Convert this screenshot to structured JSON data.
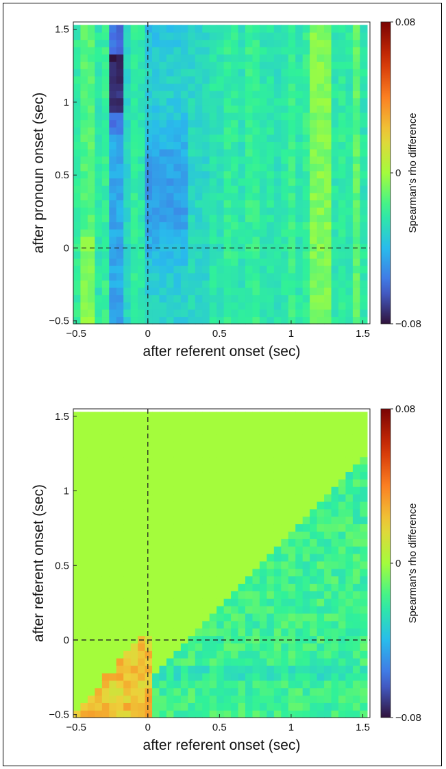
{
  "chart_data": [
    {
      "type": "heatmap",
      "xlabel": "after referent onset (sec)",
      "ylabel": "after pronoun onset (sec)",
      "xlim": [
        -0.52,
        1.55
      ],
      "ylim": [
        -0.52,
        1.55
      ],
      "x_ticks": [
        "-0.5",
        "0",
        "0.5",
        "1",
        "1.5"
      ],
      "x_tick_values": [
        -0.5,
        0,
        0.5,
        1,
        1.5
      ],
      "y_ticks": [
        "-0.5",
        "0",
        "0.5",
        "1",
        "1.5"
      ],
      "y_tick_values": [
        -0.5,
        0,
        0.5,
        1,
        1.5
      ],
      "colorbar": {
        "label": "Spearman's rho difference",
        "min": -0.08,
        "max": 0.08,
        "tick_labels": [
          "-0.08",
          "0",
          "0.08"
        ],
        "tick_values": [
          -0.08,
          0,
          0.08
        ]
      },
      "colormap": "turbo",
      "reference_lines": {
        "x": 0,
        "y": 0,
        "style": "dashed"
      },
      "grid_step_sec": 0.05,
      "pattern": "vertical stripes: strong negative band at x -0.25 to -0.2 (darkest at y 1.0-1.3), negative band x 0.0 to 0.3, mildly positive columns near x -0.45 and x 1.15-1.25"
    },
    {
      "type": "heatmap",
      "xlabel": "after referent onset (sec)",
      "ylabel": "after referent onset (sec)",
      "xlim": [
        -0.52,
        1.55
      ],
      "ylim": [
        -0.52,
        1.55
      ],
      "x_ticks": [
        "-0.5",
        "0",
        "0.5",
        "1",
        "1.5"
      ],
      "x_tick_values": [
        -0.5,
        0,
        0.5,
        1,
        1.5
      ],
      "y_ticks": [
        "-0.5",
        "0",
        "0.5",
        "1",
        "1.5"
      ],
      "y_tick_values": [
        -0.5,
        0,
        0.5,
        1,
        1.5
      ],
      "colorbar": {
        "label": "Spearman's rho difference",
        "min": -0.08,
        "max": 0.08,
        "tick_labels": [
          "-0.08",
          "0",
          "0.08"
        ],
        "tick_values": [
          -0.08,
          0,
          0.08
        ]
      },
      "colormap": "turbo",
      "reference_lines": {
        "x": 0,
        "y": 0,
        "style": "dashed"
      },
      "grid_step_sec": 0.05,
      "pattern": "upper-left triangle above the diagonal is 0 (masked); lower-right triangle slightly negative (about -0.01 to -0.03); small positive triangle near x -0.45..0, y -0.5..0 (up to about +0.035)"
    }
  ]
}
